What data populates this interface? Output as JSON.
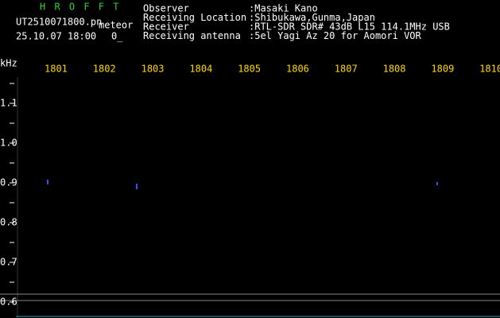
{
  "app": {
    "name": "H R O F F T",
    "file": "UT2510071800.pn",
    "mode": "meteor",
    "datetime": "25.10.07 18:00",
    "count": "0_"
  },
  "info": [
    {
      "label": "Observer",
      "value": ":Masaki Kano"
    },
    {
      "label": "Receiving Location",
      "value": ":Shibukawa,Gunma,Japan"
    },
    {
      "label": "Receiver",
      "value": ":RTL-SDR SDR# 43dB L15 114.1MHz USB"
    },
    {
      "label": "Receiving antenna",
      "value": ":5el Yagi Az 20 for Aomori VOR"
    }
  ],
  "time_axis": {
    "ticks": [
      "1801",
      "1802",
      "1803",
      "1804",
      "1805",
      "1806",
      "1807",
      "1808",
      "1809",
      "1810"
    ]
  },
  "freq_axis": {
    "unit": "kHz",
    "ticks": [
      "1.1",
      "1.0",
      "0.9",
      "0.8",
      "0.7",
      "0.6"
    ]
  }
}
